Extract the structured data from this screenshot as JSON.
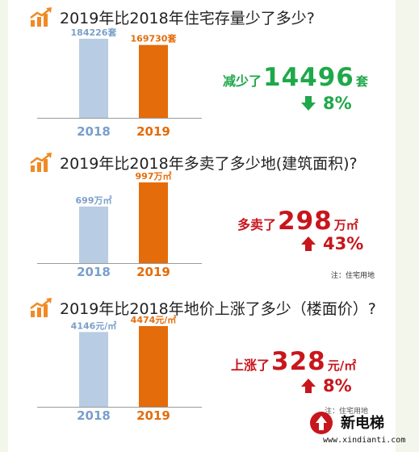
{
  "colors": {
    "bar_2018": "#b8cce4",
    "bar_2019": "#e46c0a",
    "label_2018": "#7a9fcb",
    "label_2019": "#e46c0a",
    "green": "#1fa84a",
    "red": "#c8161d",
    "icon": "#f08a24"
  },
  "icons": {
    "section": "trend-chart-icon",
    "down": "down-arrow-icon",
    "up": "up-arrow-icon"
  },
  "chart_data": [
    {
      "type": "bar",
      "title": "2019年比2018年住宅存量少了多少?",
      "categories": [
        "2018",
        "2019"
      ],
      "values": [
        184226,
        169730
      ],
      "data_labels": [
        "184226套",
        "169730套"
      ],
      "ylim": [
        0,
        184226
      ],
      "summary": {
        "prefix": "减少了",
        "value": "14496",
        "unit": "套",
        "direction": "down",
        "percent": "8%"
      }
    },
    {
      "type": "bar",
      "title": "2019年比2018年多卖了多少地(建筑面积)?",
      "categories": [
        "2018",
        "2019"
      ],
      "values": [
        699,
        997
      ],
      "data_labels": [
        "699万㎡",
        "997万㎡"
      ],
      "ylim": [
        0,
        997
      ],
      "summary": {
        "prefix": "多卖了",
        "value": "298",
        "unit": "万㎡",
        "direction": "up",
        "percent": "43%"
      },
      "note": "注：住宅用地"
    },
    {
      "type": "bar",
      "title": "2019年比2018年地价上涨了多少（楼面价）?",
      "categories": [
        "2018",
        "2019"
      ],
      "values": [
        4146,
        4474
      ],
      "data_labels": [
        "4146元/㎡",
        "4474元/㎡"
      ],
      "ylim": [
        0,
        4474
      ],
      "summary": {
        "prefix": "上涨了",
        "value": "328",
        "unit": "元/㎡",
        "direction": "up",
        "percent": "8%"
      },
      "note": "注：住宅用地"
    }
  ],
  "watermark": {
    "name": "新电梯",
    "url": "www.xindianti.com"
  }
}
